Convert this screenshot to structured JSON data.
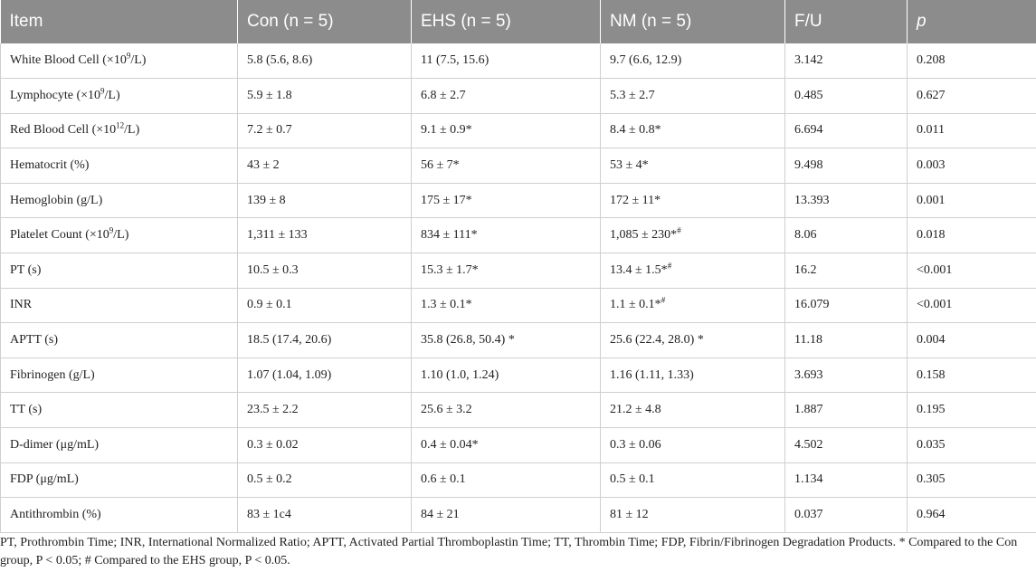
{
  "table": {
    "headers": [
      "Item",
      "Con (n = 5)",
      "EHS (n = 5)",
      "NM (n = 5)",
      "F/U",
      "p"
    ],
    "rows": [
      {
        "item_main": "White Blood Cell (×10",
        "item_sup": "9",
        "item_tail": "/L)",
        "con_main": "5.8 (5.6, 8.6)",
        "con_sup": "",
        "ehs_main": "11 (7.5, 15.6)",
        "ehs_sup": "",
        "nm_main": "9.7 (6.6, 12.9)",
        "nm_sup": "",
        "fu": "3.142",
        "p": "0.208"
      },
      {
        "item_main": "Lymphocyte (×10",
        "item_sup": "9",
        "item_tail": "/L)",
        "con_main": "5.9 ± 1.8",
        "con_sup": "",
        "ehs_main": "6.8 ± 2.7",
        "ehs_sup": "",
        "nm_main": "5.3 ± 2.7",
        "nm_sup": "",
        "fu": "0.485",
        "p": "0.627"
      },
      {
        "item_main": "Red Blood Cell (×10",
        "item_sup": "12",
        "item_tail": "/L)",
        "con_main": "7.2 ± 0.7",
        "con_sup": "",
        "ehs_main": "9.1 ± 0.9*",
        "ehs_sup": "",
        "nm_main": "8.4 ± 0.8*",
        "nm_sup": "",
        "fu": "6.694",
        "p": "0.011"
      },
      {
        "item_main": "Hematocrit (%)",
        "item_sup": "",
        "item_tail": "",
        "con_main": "43 ± 2",
        "con_sup": "",
        "ehs_main": "56 ± 7*",
        "ehs_sup": "",
        "nm_main": "53 ± 4*",
        "nm_sup": "",
        "fu": "9.498",
        "p": "0.003"
      },
      {
        "item_main": "Hemoglobin (g/L)",
        "item_sup": "",
        "item_tail": "",
        "con_main": "139 ± 8",
        "con_sup": "",
        "ehs_main": "175 ± 17*",
        "ehs_sup": "",
        "nm_main": "172 ± 11*",
        "nm_sup": "",
        "fu": "13.393",
        "p": "0.001"
      },
      {
        "item_main": "Platelet Count (×10",
        "item_sup": "9",
        "item_tail": "/L)",
        "con_main": "1,311 ± 133",
        "con_sup": "",
        "ehs_main": "834 ± 111*",
        "ehs_sup": "",
        "nm_main": "1,085 ± 230*",
        "nm_sup": "#",
        "fu": "8.06",
        "p": "0.018"
      },
      {
        "item_main": "PT (s)",
        "item_sup": "",
        "item_tail": "",
        "con_main": "10.5 ± 0.3",
        "con_sup": "",
        "ehs_main": "15.3 ± 1.7*",
        "ehs_sup": "",
        "nm_main": "13.4 ± 1.5*",
        "nm_sup": "#",
        "fu": "16.2",
        "p": "<0.001"
      },
      {
        "item_main": "INR",
        "item_sup": "",
        "item_tail": "",
        "con_main": "0.9 ± 0.1",
        "con_sup": "",
        "ehs_main": "1.3 ± 0.1*",
        "ehs_sup": "",
        "nm_main": "1.1 ± 0.1*",
        "nm_sup": "#",
        "fu": "16.079",
        "p": "<0.001"
      },
      {
        "item_main": "APTT (s)",
        "item_sup": "",
        "item_tail": "",
        "con_main": "18.5 (17.4, 20.6)",
        "con_sup": "",
        "ehs_main": "35.8 (26.8, 50.4) *",
        "ehs_sup": "",
        "nm_main": "25.6 (22.4, 28.0) *",
        "nm_sup": "",
        "fu": "11.18",
        "p": "0.004"
      },
      {
        "item_main": "Fibrinogen (g/L)",
        "item_sup": "",
        "item_tail": "",
        "con_main": "1.07 (1.04, 1.09)",
        "con_sup": "",
        "ehs_main": "1.10 (1.0, 1.24)",
        "ehs_sup": "",
        "nm_main": "1.16 (1.11, 1.33)",
        "nm_sup": "",
        "fu": "3.693",
        "p": "0.158"
      },
      {
        "item_main": "TT (s)",
        "item_sup": "",
        "item_tail": "",
        "con_main": "23.5 ± 2.2",
        "con_sup": "",
        "ehs_main": "25.6 ± 3.2",
        "ehs_sup": "",
        "nm_main": "21.2 ± 4.8",
        "nm_sup": "",
        "fu": "1.887",
        "p": "0.195"
      },
      {
        "item_main": "D-dimer (μg/mL)",
        "item_sup": "",
        "item_tail": "",
        "con_main": "0.3 ± 0.02",
        "con_sup": "",
        "ehs_main": "0.4 ± 0.04*",
        "ehs_sup": "",
        "nm_main": "0.3 ± 0.06",
        "nm_sup": "",
        "fu": "4.502",
        "p": "0.035"
      },
      {
        "item_main": "FDP (μg/mL)",
        "item_sup": "",
        "item_tail": "",
        "con_main": "0.5 ± 0.2",
        "con_sup": "",
        "ehs_main": "0.6 ± 0.1",
        "ehs_sup": "",
        "nm_main": "0.5 ± 0.1",
        "nm_sup": "",
        "fu": "1.134",
        "p": "0.305"
      },
      {
        "item_main": "Antithrombin (%)",
        "item_sup": "",
        "item_tail": "",
        "con_main": "83 ± 1c4",
        "con_sup": "",
        "ehs_main": "84 ± 21",
        "ehs_sup": "",
        "nm_main": "81 ± 12",
        "nm_sup": "",
        "fu": "0.037",
        "p": "0.964"
      }
    ]
  },
  "footnote": "PT, Prothrombin Time; INR, International Normalized Ratio; APTT, Activated Partial Thromboplastin Time; TT, Thrombin Time; FDP, Fibrin/Fibrinogen Degradation Products. * Compared to the Con group, P < 0.05; # Compared to the EHS group, P < 0.05.",
  "colors": {
    "header_bg": "#8c8c8c",
    "header_text": "#ffffff",
    "grid": "#cfcfcf",
    "text": "#222222"
  }
}
